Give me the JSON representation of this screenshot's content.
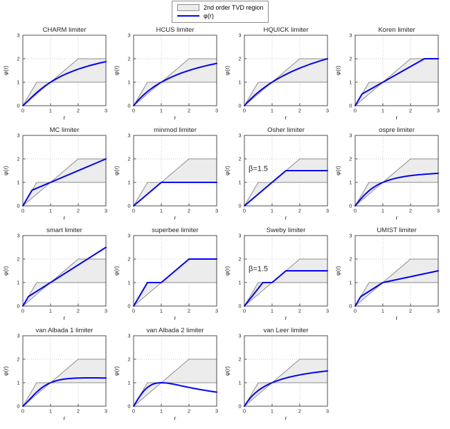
{
  "figure": {
    "background": "#ffffff",
    "accent_blue": "#0000ff",
    "region_fill": "#ececec",
    "region_border": "#8c8c8c",
    "grid_color": "#c9c9c9",
    "axis_color": "#4d4d4d",
    "text_color": "#262626"
  },
  "legend": {
    "items": [
      {
        "icon": "tvd-region-swatch",
        "label": "2nd order TVD region"
      },
      {
        "icon": "phi-line-swatch",
        "label": "φ(r)"
      }
    ]
  },
  "chart_data": {
    "type": "line",
    "grid": true,
    "xlabel": "r",
    "ylabel": "φ(r)",
    "xlim": [
      0,
      3
    ],
    "ylim": [
      0,
      3
    ],
    "xticks": [
      0,
      1,
      2,
      3
    ],
    "yticks": [
      0,
      1,
      2,
      3
    ],
    "legend_position": "top-center",
    "tvd_region_polygon": [
      [
        0,
        0
      ],
      [
        0.5,
        1
      ],
      [
        1,
        1
      ],
      [
        2,
        2
      ],
      [
        3,
        2
      ],
      [
        3,
        1
      ],
      [
        1,
        1
      ]
    ],
    "subplots": [
      {
        "title": "CHARM limiter",
        "annotation": null,
        "points": [
          [
            0,
            0
          ],
          [
            0.1,
            0.107
          ],
          [
            0.2,
            0.222
          ],
          [
            0.3,
            0.337
          ],
          [
            0.4,
            0.449
          ],
          [
            0.5,
            0.556
          ],
          [
            0.6,
            0.656
          ],
          [
            0.7,
            0.751
          ],
          [
            0.8,
            0.84
          ],
          [
            0.9,
            0.922
          ],
          [
            1,
            1
          ],
          [
            1.1,
            1.073
          ],
          [
            1.2,
            1.14
          ],
          [
            1.3,
            1.204
          ],
          [
            1.4,
            1.264
          ],
          [
            1.5,
            1.32
          ],
          [
            1.6,
            1.373
          ],
          [
            1.7,
            1.422
          ],
          [
            1.8,
            1.469
          ],
          [
            1.9,
            1.514
          ],
          [
            2,
            1.556
          ],
          [
            2.1,
            1.595
          ],
          [
            2.2,
            1.633
          ],
          [
            2.3,
            1.668
          ],
          [
            2.4,
            1.702
          ],
          [
            2.5,
            1.735
          ],
          [
            2.6,
            1.765
          ],
          [
            2.7,
            1.795
          ],
          [
            2.8,
            1.823
          ],
          [
            2.9,
            1.849
          ],
          [
            3,
            1.875
          ]
        ]
      },
      {
        "title": "HCUS limiter",
        "annotation": null,
        "points": [
          [
            0,
            0
          ],
          [
            0.1,
            0.143
          ],
          [
            0.2,
            0.273
          ],
          [
            0.3,
            0.391
          ],
          [
            0.4,
            0.5
          ],
          [
            0.5,
            0.6
          ],
          [
            0.6,
            0.692
          ],
          [
            0.7,
            0.778
          ],
          [
            0.8,
            0.857
          ],
          [
            0.9,
            0.931
          ],
          [
            1,
            1
          ],
          [
            1.1,
            1.065
          ],
          [
            1.2,
            1.125
          ],
          [
            1.3,
            1.182
          ],
          [
            1.4,
            1.235
          ],
          [
            1.5,
            1.286
          ],
          [
            1.6,
            1.333
          ],
          [
            1.7,
            1.378
          ],
          [
            1.8,
            1.421
          ],
          [
            1.9,
            1.462
          ],
          [
            2,
            1.5
          ],
          [
            2.1,
            1.537
          ],
          [
            2.2,
            1.571
          ],
          [
            2.3,
            1.605
          ],
          [
            2.4,
            1.636
          ],
          [
            2.5,
            1.667
          ],
          [
            2.6,
            1.696
          ],
          [
            2.7,
            1.723
          ],
          [
            2.8,
            1.75
          ],
          [
            2.9,
            1.776
          ],
          [
            3,
            1.8
          ]
        ]
      },
      {
        "title": "HQUICK limiter",
        "annotation": null,
        "points": [
          [
            0,
            0
          ],
          [
            0.1,
            0.129
          ],
          [
            0.2,
            0.25
          ],
          [
            0.3,
            0.364
          ],
          [
            0.4,
            0.471
          ],
          [
            0.5,
            0.571
          ],
          [
            0.6,
            0.667
          ],
          [
            0.7,
            0.757
          ],
          [
            0.8,
            0.842
          ],
          [
            0.9,
            0.923
          ],
          [
            1,
            1
          ],
          [
            1.1,
            1.073
          ],
          [
            1.2,
            1.143
          ],
          [
            1.3,
            1.209
          ],
          [
            1.4,
            1.273
          ],
          [
            1.5,
            1.333
          ],
          [
            1.6,
            1.391
          ],
          [
            1.7,
            1.447
          ],
          [
            1.8,
            1.5
          ],
          [
            1.9,
            1.551
          ],
          [
            2,
            1.6
          ],
          [
            2.1,
            1.647
          ],
          [
            2.2,
            1.692
          ],
          [
            2.3,
            1.736
          ],
          [
            2.4,
            1.778
          ],
          [
            2.5,
            1.818
          ],
          [
            2.6,
            1.857
          ],
          [
            2.7,
            1.895
          ],
          [
            2.8,
            1.931
          ],
          [
            2.9,
            1.966
          ],
          [
            3,
            2
          ]
        ]
      },
      {
        "title": "Koren limiter",
        "annotation": null,
        "points": [
          [
            0,
            0
          ],
          [
            0.25,
            0.5
          ],
          [
            2.5,
            2
          ],
          [
            3,
            2
          ]
        ]
      },
      {
        "title": "MC limiter",
        "annotation": null,
        "points": [
          [
            0,
            0
          ],
          [
            0.333,
            0.667
          ],
          [
            3,
            2
          ]
        ]
      },
      {
        "title": "minmod limiter",
        "annotation": null,
        "points": [
          [
            0,
            0
          ],
          [
            1,
            1
          ],
          [
            3,
            1
          ]
        ]
      },
      {
        "title": "Osher limiter",
        "annotation": "β=1.5",
        "points": [
          [
            0,
            0
          ],
          [
            1.5,
            1.5
          ],
          [
            3,
            1.5
          ]
        ]
      },
      {
        "title": "ospre limiter",
        "annotation": null,
        "points": [
          [
            0,
            0
          ],
          [
            0.1,
            0.149
          ],
          [
            0.2,
            0.29
          ],
          [
            0.3,
            0.421
          ],
          [
            0.4,
            0.538
          ],
          [
            0.5,
            0.643
          ],
          [
            0.6,
            0.735
          ],
          [
            0.7,
            0.815
          ],
          [
            0.8,
            0.885
          ],
          [
            0.9,
            0.947
          ],
          [
            1,
            1
          ],
          [
            1.1,
            1.047
          ],
          [
            1.2,
            1.088
          ],
          [
            1.3,
            1.124
          ],
          [
            1.4,
            1.156
          ],
          [
            1.5,
            1.184
          ],
          [
            1.6,
            1.209
          ],
          [
            1.7,
            1.232
          ],
          [
            1.8,
            1.252
          ],
          [
            1.9,
            1.27
          ],
          [
            2,
            1.286
          ],
          [
            2.1,
            1.3
          ],
          [
            2.2,
            1.313
          ],
          [
            2.3,
            1.325
          ],
          [
            2.4,
            1.336
          ],
          [
            2.5,
            1.346
          ],
          [
            2.6,
            1.355
          ],
          [
            2.7,
            1.363
          ],
          [
            2.8,
            1.371
          ],
          [
            2.9,
            1.378
          ],
          [
            3,
            1.385
          ]
        ]
      },
      {
        "title": "smart limiter",
        "annotation": null,
        "points": [
          [
            0,
            0
          ],
          [
            0.2,
            0.4
          ],
          [
            3,
            2.5
          ]
        ]
      },
      {
        "title": "superbee limiter",
        "annotation": null,
        "points": [
          [
            0,
            0
          ],
          [
            0.5,
            1
          ],
          [
            1,
            1
          ],
          [
            2,
            2
          ],
          [
            3,
            2
          ]
        ]
      },
      {
        "title": "Sweby limiter",
        "annotation": "β=1.5",
        "points": [
          [
            0,
            0
          ],
          [
            0.667,
            1
          ],
          [
            1,
            1
          ],
          [
            1.5,
            1.5
          ],
          [
            3,
            1.5
          ]
        ]
      },
      {
        "title": "UMIST limiter",
        "annotation": null,
        "points": [
          [
            0,
            0
          ],
          [
            0.2,
            0.4
          ],
          [
            1,
            1
          ],
          [
            3,
            1.5
          ]
        ]
      },
      {
        "title": "van Albada 1 limiter",
        "annotation": null,
        "points": [
          [
            0,
            0
          ],
          [
            0.1,
            0.109
          ],
          [
            0.2,
            0.231
          ],
          [
            0.3,
            0.358
          ],
          [
            0.4,
            0.483
          ],
          [
            0.5,
            0.6
          ],
          [
            0.6,
            0.706
          ],
          [
            0.7,
            0.799
          ],
          [
            0.8,
            0.878
          ],
          [
            0.9,
            0.945
          ],
          [
            1,
            1
          ],
          [
            1.1,
            1.045
          ],
          [
            1.2,
            1.082
          ],
          [
            1.3,
            1.112
          ],
          [
            1.4,
            1.135
          ],
          [
            1.5,
            1.154
          ],
          [
            1.6,
            1.169
          ],
          [
            1.7,
            1.18
          ],
          [
            1.8,
            1.189
          ],
          [
            1.9,
            1.195
          ],
          [
            2,
            1.2
          ],
          [
            2.1,
            1.203
          ],
          [
            2.2,
            1.206
          ],
          [
            2.3,
            1.207
          ],
          [
            2.4,
            1.207
          ],
          [
            2.5,
            1.207
          ],
          [
            2.6,
            1.206
          ],
          [
            2.7,
            1.205
          ],
          [
            2.8,
            1.204
          ],
          [
            2.9,
            1.202
          ],
          [
            3,
            1.2
          ]
        ]
      },
      {
        "title": "van Albada 2 limiter",
        "annotation": null,
        "points": [
          [
            0,
            0
          ],
          [
            0.1,
            0.198
          ],
          [
            0.2,
            0.385
          ],
          [
            0.3,
            0.55
          ],
          [
            0.4,
            0.69
          ],
          [
            0.5,
            0.8
          ],
          [
            0.6,
            0.882
          ],
          [
            0.7,
            0.94
          ],
          [
            0.8,
            0.976
          ],
          [
            0.9,
            0.994
          ],
          [
            1,
            1
          ],
          [
            1.1,
            0.995
          ],
          [
            1.2,
            0.984
          ],
          [
            1.3,
            0.966
          ],
          [
            1.4,
            0.946
          ],
          [
            1.5,
            0.923
          ],
          [
            1.6,
            0.899
          ],
          [
            1.7,
            0.874
          ],
          [
            1.8,
            0.849
          ],
          [
            1.9,
            0.824
          ],
          [
            2,
            0.8
          ],
          [
            2.1,
            0.776
          ],
          [
            2.2,
            0.753
          ],
          [
            2.3,
            0.731
          ],
          [
            2.4,
            0.71
          ],
          [
            2.5,
            0.69
          ],
          [
            2.6,
            0.67
          ],
          [
            2.7,
            0.651
          ],
          [
            2.8,
            0.633
          ],
          [
            2.9,
            0.616
          ],
          [
            3,
            0.6
          ]
        ]
      },
      {
        "title": "van Leer limiter",
        "annotation": null,
        "points": [
          [
            0,
            0
          ],
          [
            0.1,
            0.182
          ],
          [
            0.2,
            0.333
          ],
          [
            0.3,
            0.462
          ],
          [
            0.4,
            0.571
          ],
          [
            0.5,
            0.667
          ],
          [
            0.6,
            0.75
          ],
          [
            0.7,
            0.824
          ],
          [
            0.8,
            0.889
          ],
          [
            0.9,
            0.947
          ],
          [
            1,
            1
          ],
          [
            1.1,
            1.048
          ],
          [
            1.2,
            1.091
          ],
          [
            1.3,
            1.13
          ],
          [
            1.4,
            1.167
          ],
          [
            1.5,
            1.2
          ],
          [
            1.6,
            1.231
          ],
          [
            1.7,
            1.259
          ],
          [
            1.8,
            1.286
          ],
          [
            1.9,
            1.31
          ],
          [
            2,
            1.333
          ],
          [
            2.1,
            1.355
          ],
          [
            2.2,
            1.375
          ],
          [
            2.3,
            1.394
          ],
          [
            2.4,
            1.412
          ],
          [
            2.5,
            1.429
          ],
          [
            2.6,
            1.444
          ],
          [
            2.7,
            1.459
          ],
          [
            2.8,
            1.474
          ],
          [
            2.9,
            1.487
          ],
          [
            3,
            1.5
          ]
        ]
      }
    ]
  }
}
